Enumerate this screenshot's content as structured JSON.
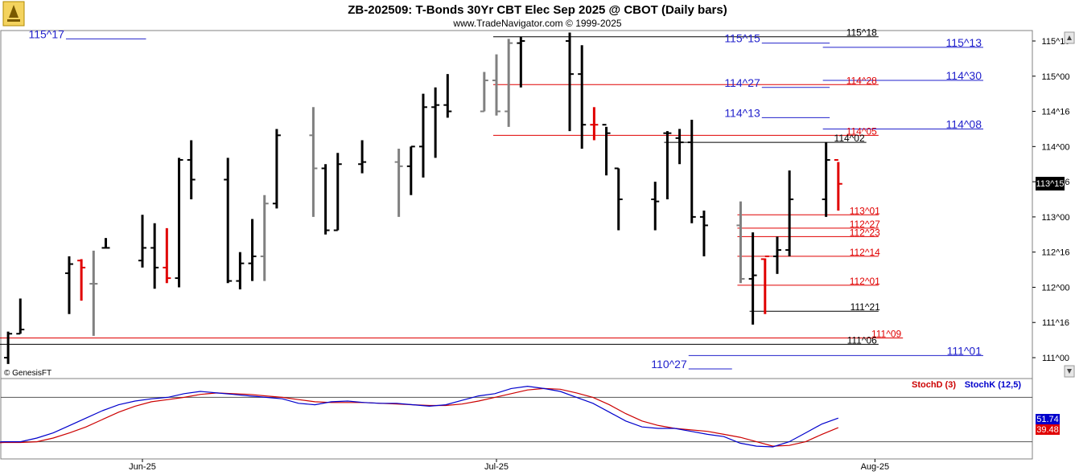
{
  "chart_data": {
    "type": "ohlc-bar",
    "title": "ZB-202509:  T-Bonds 30Yr CBT Elec Sep 2025 @ CBOT  (Daily bars)",
    "subtitle": "www.TradeNavigator.com © 1999-2025",
    "watermark": "© GenesisFT",
    "y_ticks": [
      "115^16",
      "115^00",
      "114^16",
      "114^00",
      "113^16",
      "113^00",
      "112^16",
      "112^00",
      "111^16",
      "111^00"
    ],
    "x_ticks": [
      {
        "label": "Jun-25",
        "date": "2025-06-02"
      },
      {
        "label": "Jul-25",
        "date": "2025-07-01"
      },
      {
        "label": "Aug-25",
        "date": "2025-08-01"
      }
    ],
    "last_price": "113^15",
    "price_bars": [
      {
        "date": "2025-05-19",
        "o": 111.03,
        "h": 111.25,
        "l": 110.91,
        "c": 111.0,
        "color": "#000000"
      },
      {
        "date": "2025-05-20",
        "o": 111.0,
        "h": 111.25,
        "l": 110.91,
        "c": 111.25,
        "color": "#000000"
      },
      {
        "date": "2025-05-21",
        "o": 111.0,
        "h": 112.25,
        "l": 110.91,
        "c": 111.0,
        "color": "#000000"
      },
      {
        "date": "2025-05-22",
        "o": 111.0,
        "h": 111.37,
        "l": 110.91,
        "c": 111.34,
        "color": "#000000"
      },
      {
        "date": "2025-05-23",
        "o": 111.34,
        "h": 111.84,
        "l": 111.34,
        "c": 111.4,
        "color": "#000000"
      },
      {
        "date": "2025-05-27",
        "o": 112.2,
        "h": 112.44,
        "l": 111.62,
        "c": 112.33,
        "color": "#000000"
      },
      {
        "date": "2025-05-28",
        "o": 112.38,
        "h": 112.4,
        "l": 111.81,
        "c": 112.28,
        "color": "#e00000"
      },
      {
        "date": "2025-05-29",
        "o": 112.05,
        "h": 112.52,
        "l": 111.31,
        "c": 112.05,
        "color": "#808080"
      },
      {
        "date": "2025-05-30",
        "o": 112.56,
        "h": 112.7,
        "l": 112.56,
        "c": 112.56,
        "color": "#000000"
      },
      {
        "date": "2025-06-02",
        "o": 112.38,
        "h": 113.03,
        "l": 112.28,
        "c": 112.56,
        "color": "#000000"
      },
      {
        "date": "2025-06-03",
        "o": 112.56,
        "h": 112.91,
        "l": 111.98,
        "c": 112.28,
        "color": "#000000"
      },
      {
        "date": "2025-06-04",
        "o": 112.28,
        "h": 112.84,
        "l": 112.06,
        "c": 112.13,
        "color": "#e00000"
      },
      {
        "date": "2025-06-05",
        "o": 112.13,
        "h": 113.84,
        "l": 112.0,
        "c": 113.81,
        "color": "#000000"
      },
      {
        "date": "2025-06-06",
        "o": 113.81,
        "h": 114.09,
        "l": 113.25,
        "c": 113.53,
        "color": "#000000"
      },
      {
        "date": "2025-06-09",
        "o": 113.53,
        "h": 113.84,
        "l": 112.06,
        "c": 112.09,
        "color": "#000000"
      },
      {
        "date": "2025-06-10",
        "o": 112.09,
        "h": 112.5,
        "l": 111.97,
        "c": 112.34,
        "color": "#000000"
      },
      {
        "date": "2025-06-11",
        "o": 112.34,
        "h": 112.97,
        "l": 112.09,
        "c": 112.44,
        "color": "#000000"
      },
      {
        "date": "2025-06-12",
        "o": 112.44,
        "h": 113.31,
        "l": 112.09,
        "c": 113.19,
        "color": "#808080"
      },
      {
        "date": "2025-06-13",
        "o": 113.19,
        "h": 114.25,
        "l": 113.12,
        "c": 114.16,
        "color": "#000000"
      },
      {
        "date": "2025-06-16",
        "o": 114.16,
        "h": 114.56,
        "l": 113.0,
        "c": 113.69,
        "color": "#808080"
      },
      {
        "date": "2025-06-17",
        "o": 113.69,
        "h": 113.75,
        "l": 112.75,
        "c": 112.81,
        "color": "#000000"
      },
      {
        "date": "2025-06-18",
        "o": 112.81,
        "h": 113.91,
        "l": 112.81,
        "c": 113.75,
        "color": "#000000"
      },
      {
        "date": "2025-06-20",
        "o": 113.75,
        "h": 114.09,
        "l": 113.62,
        "c": 113.78,
        "color": "#000000"
      },
      {
        "date": "2025-06-23",
        "o": 113.78,
        "h": 113.97,
        "l": 113.0,
        "c": 113.72,
        "color": "#808080"
      },
      {
        "date": "2025-06-24",
        "o": 113.72,
        "h": 114.0,
        "l": 113.31,
        "c": 114.0,
        "color": "#000000"
      },
      {
        "date": "2025-06-25",
        "o": 114.0,
        "h": 114.75,
        "l": 113.56,
        "c": 114.56,
        "color": "#000000"
      },
      {
        "date": "2025-06-26",
        "o": 114.56,
        "h": 114.84,
        "l": 113.84,
        "c": 114.59,
        "color": "#000000"
      },
      {
        "date": "2025-06-27",
        "o": 114.59,
        "h": 115.03,
        "l": 114.41,
        "c": 114.5,
        "color": "#000000"
      },
      {
        "date": "2025-06-30",
        "o": 114.5,
        "h": 115.06,
        "l": 114.5,
        "c": 114.94,
        "color": "#808080"
      },
      {
        "date": "2025-07-01",
        "o": 114.94,
        "h": 115.31,
        "l": 114.44,
        "c": 114.5,
        "color": "#808080"
      },
      {
        "date": "2025-07-02",
        "o": 114.5,
        "h": 115.53,
        "l": 114.28,
        "c": 115.47,
        "color": "#808080"
      },
      {
        "date": "2025-07-03",
        "o": 115.47,
        "h": 115.56,
        "l": 114.84,
        "c": 115.5,
        "color": "#000000"
      },
      {
        "date": "2025-07-07",
        "o": 115.5,
        "h": 115.62,
        "l": 114.22,
        "c": 115.03,
        "color": "#000000"
      },
      {
        "date": "2025-07-08",
        "o": 115.03,
        "h": 115.44,
        "l": 113.97,
        "c": 114.31,
        "color": "#000000"
      },
      {
        "date": "2025-07-09",
        "o": 114.31,
        "h": 114.56,
        "l": 114.09,
        "c": 114.31,
        "color": "#e00000"
      },
      {
        "date": "2025-07-10",
        "o": 114.31,
        "h": 114.28,
        "l": 113.59,
        "c": 114.19,
        "color": "#000000"
      },
      {
        "date": "2025-07-11",
        "o": 113.69,
        "h": 113.69,
        "l": 112.81,
        "c": 113.25,
        "color": "#000000"
      },
      {
        "date": "2025-07-14",
        "o": 113.25,
        "h": 113.5,
        "l": 112.81,
        "c": 113.22,
        "color": "#000000"
      },
      {
        "date": "2025-07-15",
        "o": 114.19,
        "h": 114.22,
        "l": 113.25,
        "c": 114.19,
        "color": "#000000"
      },
      {
        "date": "2025-07-16",
        "o": 114.12,
        "h": 114.25,
        "l": 113.75,
        "c": 114.06,
        "color": "#000000"
      },
      {
        "date": "2025-07-17",
        "o": 114.06,
        "h": 114.38,
        "l": 112.91,
        "c": 113.0,
        "color": "#000000"
      },
      {
        "date": "2025-07-18",
        "o": 113.0,
        "h": 113.09,
        "l": 112.44,
        "c": 112.88,
        "color": "#000000"
      },
      {
        "date": "2025-07-21",
        "o": 112.88,
        "h": 113.22,
        "l": 112.06,
        "c": 112.12,
        "color": "#808080"
      },
      {
        "date": "2025-07-22",
        "o": 112.12,
        "h": 112.78,
        "l": 111.47,
        "c": 112.17,
        "color": "#000000"
      },
      {
        "date": "2025-07-23",
        "o": 112.4,
        "h": 112.41,
        "l": 111.62,
        "c": 112.44,
        "color": "#e00000"
      },
      {
        "date": "2025-07-24",
        "o": 112.44,
        "h": 112.72,
        "l": 112.19,
        "c": 112.53,
        "color": "#000000"
      },
      {
        "date": "2025-07-25",
        "o": 112.53,
        "h": 113.66,
        "l": 112.44,
        "c": 113.25,
        "color": "#000000"
      },
      {
        "date": "2025-07-28",
        "o": 113.25,
        "h": 114.06,
        "l": 113.0,
        "c": 113.81,
        "color": "#000000"
      },
      {
        "date": "2025-07-29",
        "o": 113.81,
        "h": 113.78,
        "l": 113.09,
        "c": 113.47,
        "color": "#e00000"
      }
    ],
    "levels": [
      {
        "label": "115^18",
        "y": 115.56,
        "x_from": "2025-07-01",
        "label_at": "2025-07-29",
        "color": "#000000",
        "size": "sm"
      },
      {
        "label": "115^17",
        "y": 115.53,
        "x_from": "2025-05-27",
        "label_at": "2025-05-30",
        "label_side": "left",
        "color": "#2222cc",
        "size": "lg"
      },
      {
        "label": "115^15",
        "y": 115.47,
        "x_from": "2025-07-23",
        "label_at": "2025-07-25",
        "label_side": "left",
        "color": "#2222cc",
        "size": "lg"
      },
      {
        "label": "115^13",
        "y": 115.41,
        "x_from": "2025-07-28",
        "label_at": "2025-08-07",
        "color": "#2222cc",
        "size": "lg"
      },
      {
        "label": "114^30",
        "y": 114.94,
        "x_from": "2025-07-28",
        "label_at": "2025-08-07",
        "color": "#2222cc",
        "size": "lg"
      },
      {
        "label": "114^28",
        "y": 114.88,
        "x_from": "2025-07-01",
        "label_at": "2025-07-29",
        "color": "#e00000",
        "size": "sm"
      },
      {
        "label": "114^27",
        "y": 114.84,
        "x_from": "2025-07-23",
        "label_at": "2025-07-25",
        "label_side": "left",
        "color": "#2222cc",
        "size": "lg"
      },
      {
        "label": "114^13",
        "y": 114.41,
        "x_from": "2025-07-23",
        "label_at": "2025-07-25",
        "label_side": "left",
        "color": "#2222cc",
        "size": "lg"
      },
      {
        "label": "114^08",
        "y": 114.25,
        "x_from": "2025-07-28",
        "label_at": "2025-08-07",
        "color": "#2222cc",
        "size": "lg"
      },
      {
        "label": "114^05",
        "y": 114.16,
        "x_from": "2025-07-01",
        "label_at": "2025-07-29",
        "color": "#e00000",
        "size": "sm"
      },
      {
        "label": "114^02",
        "y": 114.06,
        "x_from": "2025-07-15",
        "label_at": "2025-07-28",
        "color": "#000000",
        "size": "sm"
      },
      {
        "label": "113^01",
        "y": 113.03,
        "x_from": "2025-07-21",
        "label_at": "2025-07-29",
        "color": "#e00000",
        "size": "sm"
      },
      {
        "label": "112^27",
        "y": 112.84,
        "x_from": "2025-07-21",
        "label_at": "2025-07-29",
        "color": "#e00000",
        "size": "sm"
      },
      {
        "label": "112^23",
        "y": 112.72,
        "x_from": "2025-07-21",
        "label_at": "2025-07-29",
        "color": "#e00000",
        "size": "sm"
      },
      {
        "label": "112^14",
        "y": 112.44,
        "x_from": "2025-07-21",
        "label_at": "2025-07-29",
        "color": "#e00000",
        "size": "sm"
      },
      {
        "label": "112^01",
        "y": 112.03,
        "x_from": "2025-07-21",
        "label_at": "2025-07-29",
        "color": "#e00000",
        "size": "sm"
      },
      {
        "label": "111^21",
        "y": 111.66,
        "x_from": "2025-07-22",
        "label_at": "2025-07-29",
        "color": "#000000",
        "size": "sm"
      },
      {
        "label": "111^09",
        "y": 111.28,
        "x_from": "2025-05-19",
        "label_at": "2025-07-31",
        "color": "#e00000",
        "size": "sm"
      },
      {
        "label": "111^06",
        "y": 111.19,
        "x_from": "2025-05-19",
        "label_at": "2025-07-29",
        "color": "#000000",
        "size": "sm"
      },
      {
        "label": "111^01",
        "y": 111.03,
        "x_from": "2025-07-17",
        "label_at": "2025-08-07",
        "color": "#2222cc",
        "size": "lg"
      },
      {
        "label": "110^27",
        "y": 110.84,
        "x_from": "2025-07-17",
        "label_at": "2025-07-17",
        "label_side": "left",
        "color": "#2222cc",
        "size": "lg"
      }
    ],
    "stoch": {
      "legend": [
        {
          "name": "StochD (3)",
          "color": "#cc0000"
        },
        {
          "name": "StochK (12,5)",
          "color": "#0000cc"
        }
      ],
      "ylim": [
        0,
        100
      ],
      "guides": [
        80,
        20
      ],
      "last_k": "51.74",
      "last_d": "39.48",
      "k": [
        18,
        19,
        20,
        20,
        25,
        32,
        42,
        52,
        62,
        70,
        75,
        78,
        80,
        85,
        88,
        86,
        84,
        82,
        80,
        78,
        72,
        70,
        74,
        75,
        73,
        72,
        72,
        70,
        68,
        70,
        76,
        82,
        85,
        92,
        95,
        92,
        88,
        80,
        72,
        60,
        48,
        40,
        38,
        38,
        34,
        30,
        27,
        18,
        14,
        13,
        20,
        32,
        44,
        52
      ],
      "d": [
        18,
        18,
        19,
        19,
        20,
        25,
        32,
        40,
        50,
        60,
        68,
        74,
        77,
        80,
        84,
        86,
        85,
        84,
        82,
        80,
        77,
        74,
        73,
        73,
        73,
        72,
        71,
        70,
        69,
        69,
        71,
        75,
        80,
        85,
        90,
        92,
        91,
        86,
        80,
        70,
        58,
        48,
        42,
        38,
        36,
        34,
        30,
        26,
        20,
        14,
        15,
        20,
        30,
        39
      ]
    }
  }
}
